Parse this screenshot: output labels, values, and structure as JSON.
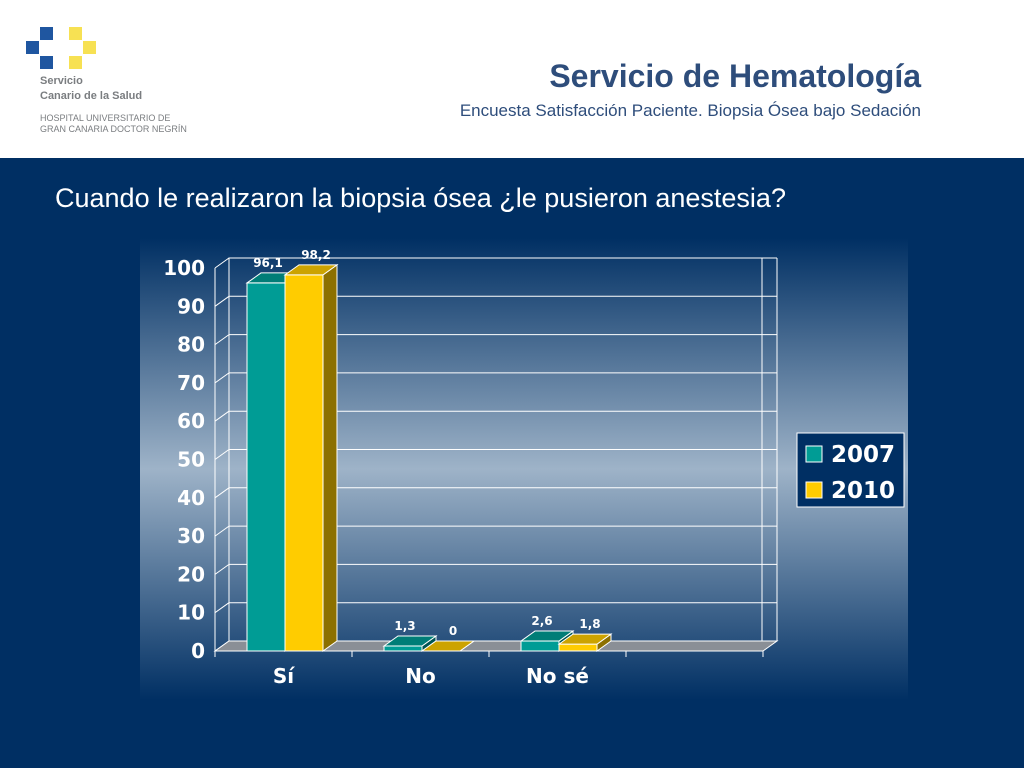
{
  "header": {
    "title": "Servicio de Hematología",
    "subtitle": "Encuesta Satisfacción Paciente. Biopsia Ósea bajo Sedación",
    "org_line1": "Servicio",
    "org_line2": "Canario de la Salud",
    "org_line3": "HOSPITAL UNIVERSITARIO DE",
    "org_line4": "GRAN CANARIA DOCTOR NEGRÍN"
  },
  "question": "Cuando le realizaron la biopsia ósea ¿le pusieron anestesia?",
  "colors": {
    "logo_blue": "#1f56a0",
    "logo_yellow": "#f7e153",
    "panel": "#002f63",
    "series_2007": "#009c95",
    "series_2010": "#ffcc00"
  },
  "chart_data": {
    "type": "bar",
    "categories": [
      "Sí",
      "No",
      "No sé"
    ],
    "series": [
      {
        "name": "2007",
        "values": [
          96.1,
          1.3,
          2.6
        ],
        "labels": [
          "96,1",
          "1,3",
          "2,6"
        ]
      },
      {
        "name": "2010",
        "values": [
          98.2,
          0,
          1.8
        ],
        "labels": [
          "98,2",
          "0",
          "1,8"
        ]
      }
    ],
    "yticks": [
      "0",
      "10",
      "20",
      "30",
      "40",
      "50",
      "60",
      "70",
      "80",
      "90",
      "100"
    ],
    "ylim": [
      0,
      100
    ],
    "grid": true,
    "legend": "right",
    "style": "3d"
  }
}
